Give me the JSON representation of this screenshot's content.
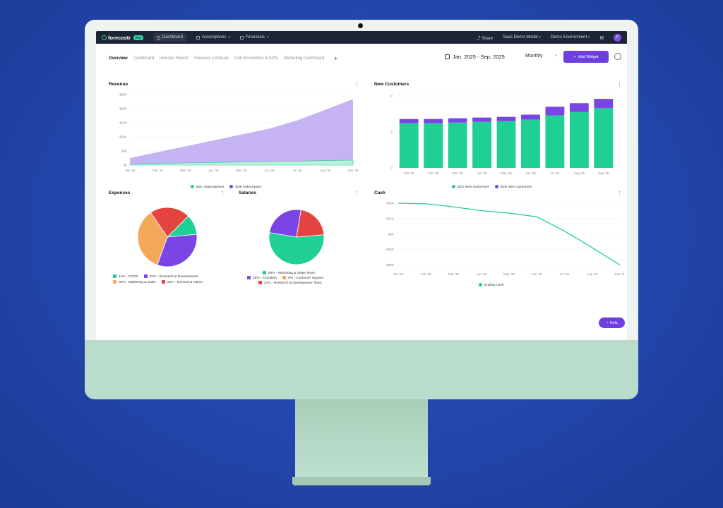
{
  "topnav": {
    "brand": "forecastr",
    "brand_badge": "Pro",
    "items": [
      {
        "label": "Dashboard"
      },
      {
        "label": "Assumptions"
      },
      {
        "label": "Financials"
      }
    ],
    "share": "Share",
    "model": "Saas Demo Model",
    "environment": "Demo Environment",
    "avatar": "P"
  },
  "subnav": {
    "tabs": [
      {
        "label": "Overview"
      },
      {
        "label": "Cashboard"
      },
      {
        "label": "Investor Report"
      },
      {
        "label": "Forecast v Actuals"
      },
      {
        "label": "Unit Economics & KPIs"
      },
      {
        "label": "Marketing Dashboard"
      }
    ],
    "add_tab": "+",
    "date_range": "Jan, 2025  -  Sep, 2025",
    "period": "Monthly",
    "add_widget": "Add Widget"
  },
  "revenue": {
    "title": "Revenue",
    "legend": [
      "B2C Subscriptions",
      "B2B Subscription"
    ]
  },
  "customers": {
    "title": "New Customers",
    "legend": [
      "B2C New Customers",
      "B2B New Customers"
    ]
  },
  "expenses": {
    "title": "Expenses",
    "legend": [
      "11% - COGS",
      "32% - Research & Development",
      "35% - Marketing & Sales",
      "22% - General & Admin"
    ]
  },
  "salaries": {
    "title": "Salaries",
    "legend": [
      "54% - Marketing & Sales Team",
      "25% - Founders",
      "0% - Customer Support",
      "21% - Research & Development Team"
    ]
  },
  "cash": {
    "title": "Cash",
    "legend": [
      "Ending Cash"
    ]
  },
  "help": "Help",
  "colors": {
    "green": "#1fcf94",
    "purple": "#7b45e6",
    "lavender": "#c5b3f3",
    "orange": "#f4a95a",
    "red": "#e5433f",
    "accent": "#6d3fe0"
  },
  "chart_data": [
    {
      "type": "area",
      "title": "Revenue",
      "categories": [
        "Jan '25",
        "Feb '25",
        "Mar '25",
        "Apr '25",
        "May '25",
        "Jun '25",
        "Jul '25",
        "Aug '25",
        "Sep '25"
      ],
      "yticks": [
        "$0",
        "$5K",
        "$10K",
        "$15K",
        "$20K",
        "$30K"
      ],
      "ylim": [
        0,
        30000
      ],
      "series": [
        {
          "name": "B2C Subscriptions",
          "values": [
            500,
            700,
            900,
            1100,
            1300,
            1500,
            1700,
            1900,
            2100
          ]
        },
        {
          "name": "B2B Subscription",
          "values": [
            3000,
            5500,
            8000,
            10500,
            13000,
            15500,
            19000,
            23500,
            28000
          ]
        }
      ],
      "legend_position": "bottom"
    },
    {
      "type": "bar",
      "title": "New Customers",
      "categories": [
        "Jan '25",
        "Feb '25",
        "Mar '25",
        "Apr '25",
        "May '25",
        "Jun '25",
        "Jul '25",
        "Aug '25",
        "Sep '25"
      ],
      "yticks": [
        "0",
        "5",
        "10"
      ],
      "ylim": [
        0,
        10
      ],
      "stacked": true,
      "series": [
        {
          "name": "B2C New Customers",
          "values": [
            6.2,
            6.2,
            6.3,
            6.4,
            6.5,
            6.7,
            7.3,
            7.8,
            8.3
          ]
        },
        {
          "name": "B2B New Customers",
          "values": [
            0.6,
            0.6,
            0.6,
            0.6,
            0.6,
            0.7,
            1.2,
            1.2,
            1.3
          ]
        }
      ],
      "legend_position": "bottom"
    },
    {
      "type": "pie",
      "title": "Expenses",
      "labels": [
        "COGS",
        "Research & Development",
        "Marketing & Sales",
        "General & Admin"
      ],
      "values": [
        11,
        32,
        35,
        22
      ]
    },
    {
      "type": "pie",
      "title": "Salaries",
      "labels": [
        "Marketing & Sales Team",
        "Founders",
        "Customer Support",
        "Research & Development Team"
      ],
      "values": [
        54,
        25,
        0,
        21
      ]
    },
    {
      "type": "line",
      "title": "Cash",
      "categories": [
        "Jan '25",
        "Feb '25",
        "Mar '25",
        "Apr '25",
        "May '25",
        "Jun '25",
        "Jul '25",
        "Aug '25",
        "Sep '25"
      ],
      "yticks": [
        "$50K",
        "$25K",
        "$0K",
        "-$25K",
        "-$50K"
      ],
      "ylim": [
        -55000,
        50000
      ],
      "series": [
        {
          "name": "Ending Cash",
          "values": [
            50000,
            49000,
            44000,
            38000,
            34000,
            28000,
            5000,
            -22000,
            -50000
          ]
        }
      ],
      "legend_position": "bottom"
    }
  ]
}
